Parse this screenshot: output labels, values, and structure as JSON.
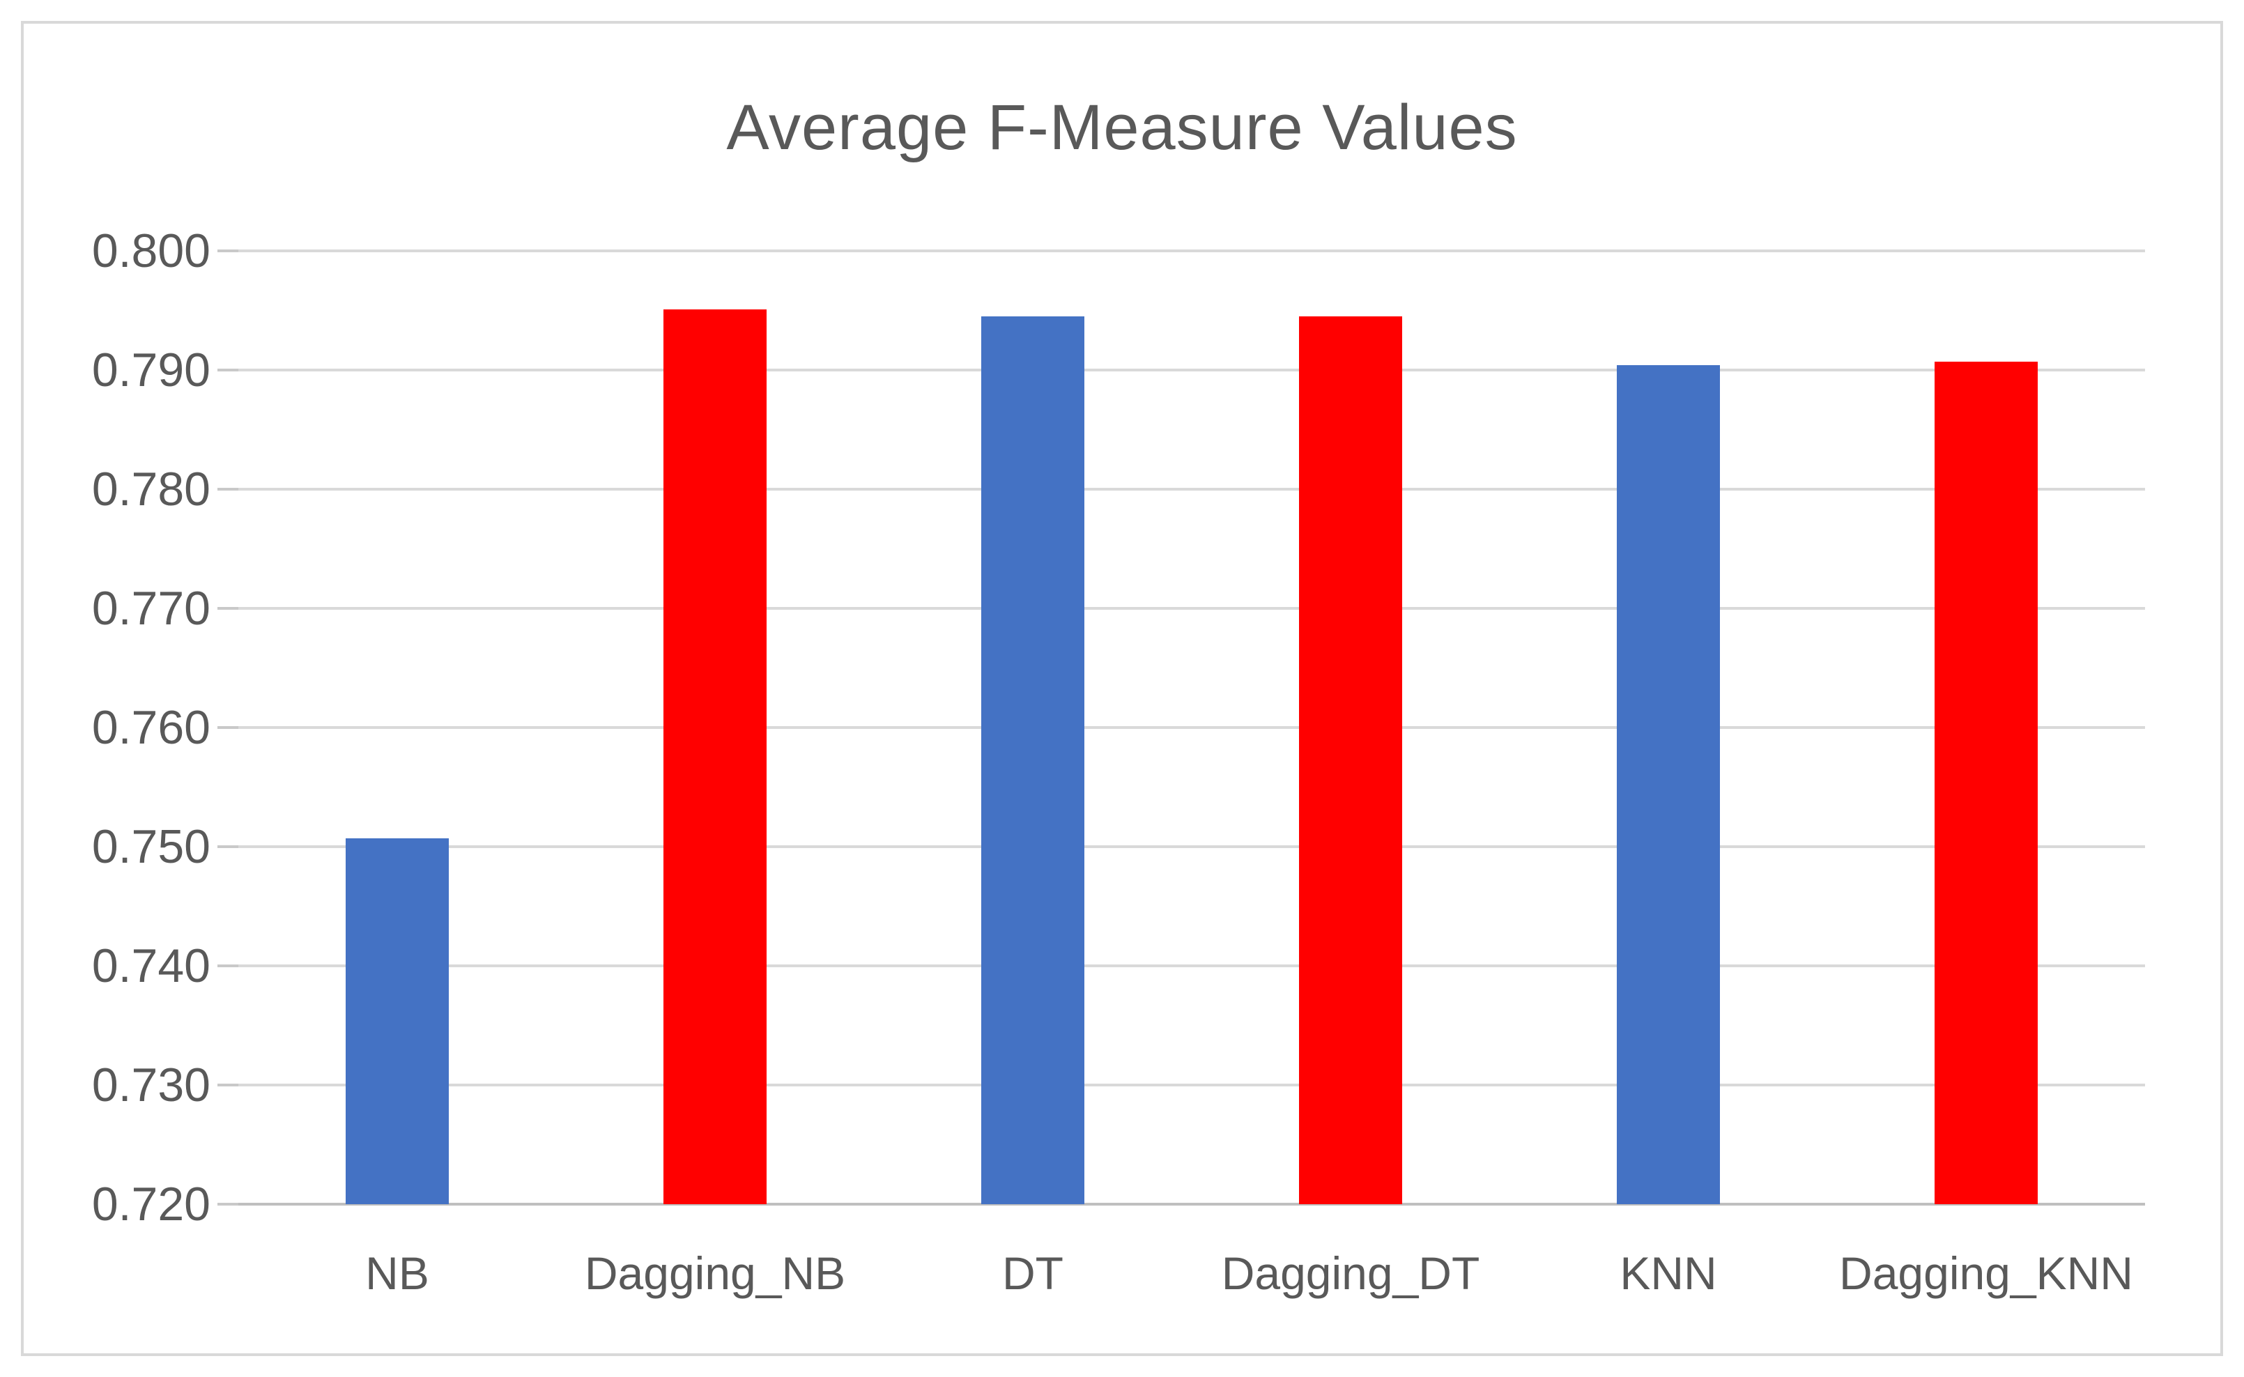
{
  "chart_data": {
    "type": "bar",
    "title": "Average F-Measure Values",
    "categories": [
      "NB",
      "Dagging_NB",
      "DT",
      "Dagging_DT",
      "KNN",
      "Dagging_KNN"
    ],
    "values": [
      0.7507,
      0.7951,
      0.7945,
      0.7945,
      0.7904,
      0.7907
    ],
    "bar_colors": [
      "#4472C4",
      "#FF0000",
      "#4472C4",
      "#FF0000",
      "#4472C4",
      "#FF0000"
    ],
    "ylim": [
      0.72,
      0.8
    ],
    "ytick_step": 0.01,
    "y_tick_labels": [
      "0.800",
      "0.790",
      "0.780",
      "0.770",
      "0.760",
      "0.750",
      "0.740",
      "0.730",
      "0.720"
    ],
    "xlabel": "",
    "ylabel": "",
    "grid": true,
    "legend": "none",
    "colors": {
      "text": "#595959",
      "gridline": "#D9D9D9",
      "axis_line": "#BFBFBF",
      "chart_border": "#D9D9D9",
      "background": "#FFFFFF"
    }
  }
}
